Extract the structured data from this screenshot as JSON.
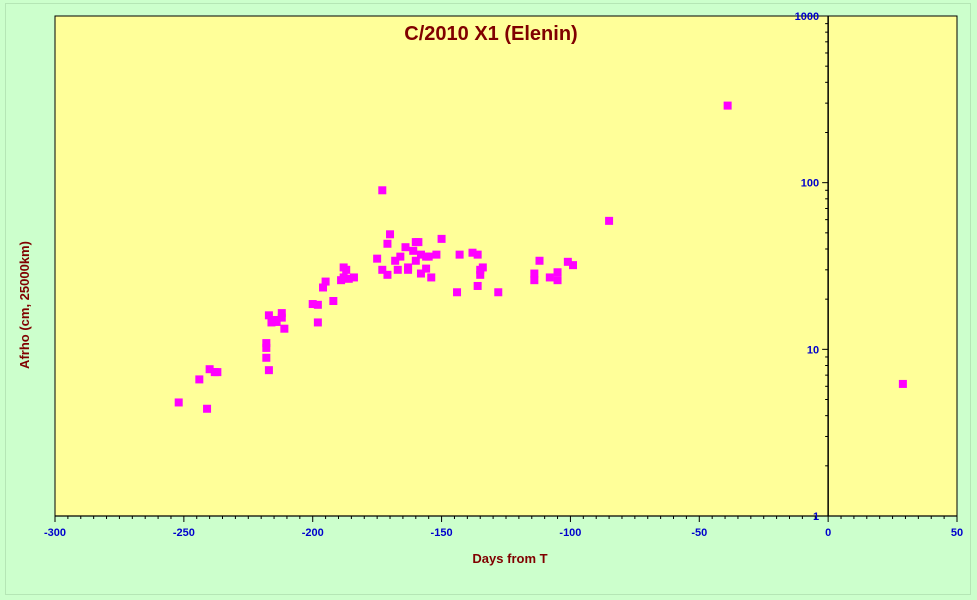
{
  "chart_data": {
    "type": "scatter",
    "title": "C/2010 X1 (Elenin)",
    "xlabel": "Days from T",
    "ylabel": "Afrho (cm, 25000km)",
    "xlim": [
      -300,
      50
    ],
    "ylim": [
      1,
      1000
    ],
    "yscale": "log",
    "x_ticks": [
      -300,
      -250,
      -200,
      -150,
      -100,
      -50,
      0,
      50
    ],
    "y_ticks": [
      1,
      10,
      100,
      1000
    ],
    "y_axis_position": "x=0",
    "grid": false,
    "legend": "none",
    "colors": {
      "plot_background": "#ffff99",
      "page_background": "#ccffcc",
      "marker": "#ff00ff",
      "axis": "#000000",
      "tick_label": "#0000cc",
      "title": "#800000",
      "axis_label": "#800000"
    },
    "series": [
      {
        "points": [
          [
            -252,
            4.8
          ],
          [
            -244,
            6.6
          ],
          [
            -241,
            4.4
          ],
          [
            -240,
            7.6
          ],
          [
            -238,
            7.3
          ],
          [
            -237,
            7.3
          ],
          [
            -218,
            8.9
          ],
          [
            -218,
            10.2
          ],
          [
            -218,
            10.9
          ],
          [
            -217,
            7.5
          ],
          [
            -217,
            16
          ],
          [
            -216,
            14.5
          ],
          [
            -215,
            15
          ],
          [
            -214,
            14.6
          ],
          [
            -212,
            15.5
          ],
          [
            -212,
            16.5
          ],
          [
            -211,
            13.3
          ],
          [
            -200,
            18.7
          ],
          [
            -198,
            14.5
          ],
          [
            -198,
            18.5
          ],
          [
            -196,
            23.5
          ],
          [
            -195,
            25.5
          ],
          [
            -192,
            19.5
          ],
          [
            -189,
            26
          ],
          [
            -188,
            31
          ],
          [
            -188,
            27
          ],
          [
            -187,
            30
          ],
          [
            -186,
            26.5
          ],
          [
            -184,
            27
          ],
          [
            -175,
            35
          ],
          [
            -173,
            30
          ],
          [
            -173,
            90
          ],
          [
            -171,
            43
          ],
          [
            -171,
            28
          ],
          [
            -170,
            49
          ],
          [
            -168,
            34
          ],
          [
            -167,
            30
          ],
          [
            -166,
            36
          ],
          [
            -164,
            41
          ],
          [
            -163,
            31
          ],
          [
            -163,
            30
          ],
          [
            -161,
            39
          ],
          [
            -160,
            44
          ],
          [
            -160,
            34
          ],
          [
            -159,
            44
          ],
          [
            -158,
            28.5
          ],
          [
            -158,
            37
          ],
          [
            -156,
            30.5
          ],
          [
            -156,
            36
          ],
          [
            -155,
            36
          ],
          [
            -154,
            27
          ],
          [
            -152,
            37
          ],
          [
            -150,
            46
          ],
          [
            -144,
            22
          ],
          [
            -143,
            37
          ],
          [
            -138,
            38
          ],
          [
            -136,
            24
          ],
          [
            -136,
            37
          ],
          [
            -135,
            30
          ],
          [
            -135,
            28
          ],
          [
            -134,
            31
          ],
          [
            -128,
            22
          ],
          [
            -114,
            26
          ],
          [
            -114,
            28.5
          ],
          [
            -112,
            34
          ],
          [
            -108,
            27
          ],
          [
            -105,
            26
          ],
          [
            -105,
            29
          ],
          [
            -101,
            33.5
          ],
          [
            -99,
            32
          ],
          [
            -85,
            59
          ],
          [
            -39,
            290
          ],
          [
            29,
            6.2
          ]
        ]
      }
    ]
  }
}
